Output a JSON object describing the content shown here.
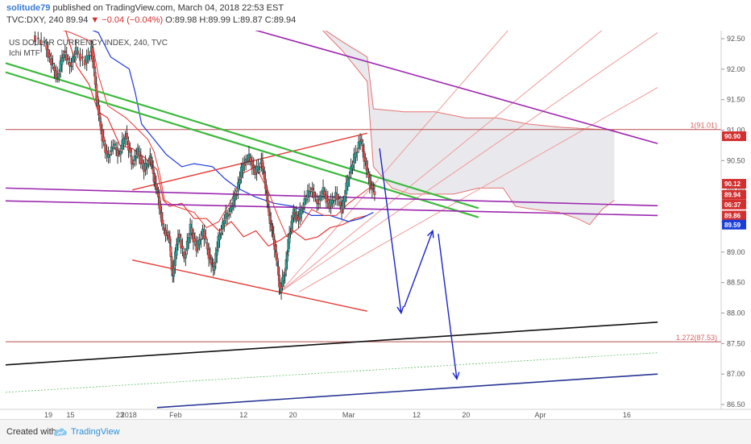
{
  "header": {
    "user": "solitude79",
    "published": "published on TradingView.com, March 04, 2018 22:53 EST",
    "symbol": "TVC:DXY, 240",
    "last": "89.94",
    "change": "▼ −0.04 (−0.04%)",
    "ohlc": "O:89.98 H:89.99 L:89.87 C:89.94"
  },
  "footer": {
    "created_with": "Created with",
    "brand": "TradingView"
  },
  "chart_data": {
    "type": "candlestick",
    "title": "US DOLLAR CURRENCY INDEX, 240, TVC",
    "subtitle": "Ichi MTF",
    "x_ticks": [
      "19",
      "2018",
      "15",
      "23",
      "Feb",
      "12",
      "20",
      "Mar",
      "12",
      "20",
      "Apr",
      "16"
    ],
    "y_ticks": [
      "92.50",
      "92.00",
      "91.50",
      "91.00",
      "90.50",
      "90.00",
      "89.50",
      "89.00",
      "88.50",
      "88.00",
      "87.50",
      "87.00",
      "86.50"
    ],
    "ylim": [
      86.45,
      92.7
    ],
    "price_path": [
      {
        "d": 40,
        "v": 92.55
      },
      {
        "d": 42,
        "v": 92.4
      },
      {
        "d": 43,
        "v": 92.1
      },
      {
        "d": 44,
        "v": 91.85
      },
      {
        "d": 45,
        "v": 92.3
      },
      {
        "d": 46,
        "v": 92.05
      },
      {
        "d": 47,
        "v": 92.3
      },
      {
        "d": 48.5,
        "v": 92.1
      },
      {
        "d": 49.5,
        "v": 92.35
      },
      {
        "d": 50.3,
        "v": 91.55
      },
      {
        "d": 51,
        "v": 91.0
      },
      {
        "d": 52,
        "v": 90.55
      },
      {
        "d": 53,
        "v": 90.75
      },
      {
        "d": 54,
        "v": 90.6
      },
      {
        "d": 55,
        "v": 90.95
      },
      {
        "d": 56,
        "v": 90.45
      },
      {
        "d": 57,
        "v": 90.65
      },
      {
        "d": 58,
        "v": 90.35
      },
      {
        "d": 59,
        "v": 90.55
      },
      {
        "d": 59.6,
        "v": 90.2
      },
      {
        "d": 60.3,
        "v": 89.9
      },
      {
        "d": 61,
        "v": 89.4
      },
      {
        "d": 62,
        "v": 89.25
      },
      {
        "d": 62.6,
        "v": 88.6
      },
      {
        "d": 63.5,
        "v": 89.3
      },
      {
        "d": 64.5,
        "v": 88.9
      },
      {
        "d": 65.5,
        "v": 89.4
      },
      {
        "d": 66.5,
        "v": 89.05
      },
      {
        "d": 67.5,
        "v": 89.35
      },
      {
        "d": 68.5,
        "v": 88.95
      },
      {
        "d": 69.2,
        "v": 88.7
      },
      {
        "d": 70,
        "v": 89.2
      },
      {
        "d": 71,
        "v": 89.55
      },
      {
        "d": 72,
        "v": 89.7
      },
      {
        "d": 73,
        "v": 90.0
      },
      {
        "d": 74,
        "v": 90.45
      },
      {
        "d": 75,
        "v": 90.55
      },
      {
        "d": 76,
        "v": 90.3
      },
      {
        "d": 77,
        "v": 90.5
      },
      {
        "d": 77.6,
        "v": 90.1
      },
      {
        "d": 78.2,
        "v": 89.6
      },
      {
        "d": 78.8,
        "v": 89.3
      },
      {
        "d": 79.4,
        "v": 88.9
      },
      {
        "d": 80,
        "v": 88.35
      },
      {
        "d": 80.8,
        "v": 88.7
      },
      {
        "d": 81.5,
        "v": 89.3
      },
      {
        "d": 82.2,
        "v": 89.65
      },
      {
        "d": 83,
        "v": 89.55
      },
      {
        "d": 84,
        "v": 89.85
      },
      {
        "d": 85,
        "v": 90.05
      },
      {
        "d": 86,
        "v": 89.8
      },
      {
        "d": 87,
        "v": 90.0
      },
      {
        "d": 88,
        "v": 89.75
      },
      {
        "d": 89,
        "v": 89.95
      },
      {
        "d": 90,
        "v": 89.7
      },
      {
        "d": 91,
        "v": 90.2
      },
      {
        "d": 92,
        "v": 90.55
      },
      {
        "d": 93,
        "v": 90.85
      },
      {
        "d": 93.8,
        "v": 90.45
      },
      {
        "d": 94.5,
        "v": 90.15
      },
      {
        "d": 95.3,
        "v": 89.94
      }
    ],
    "channel_lines": [
      {
        "name": "bull-red-upper",
        "color": "#e53935",
        "width": 1.4,
        "d1": 56,
        "v1": 90.02,
        "d2": 94,
        "v2": 90.95
      },
      {
        "name": "bull-red-lower",
        "color": "#e53935",
        "width": 1.4,
        "d1": 56,
        "v1": 88.87,
        "d2": 94,
        "v2": 88.03
      },
      {
        "name": "green-1",
        "color": "#3cb83c",
        "width": 2.2,
        "d1": 35.5,
        "v1": 92.1,
        "d2": 112,
        "v2": 89.72
      },
      {
        "name": "green-2",
        "color": "#3cb83c",
        "width": 2.2,
        "d1": 35.5,
        "v1": 91.95,
        "d2": 112,
        "v2": 89.57
      },
      {
        "name": "purple-top",
        "color": "#9c27b0",
        "width": 1.6,
        "d1": 74.5,
        "v1": 92.68,
        "d2": 141,
        "v2": 90.78
      },
      {
        "name": "purple-mid-1",
        "color": "#9c27b0",
        "width": 1.6,
        "d1": 35.5,
        "v1": 90.05,
        "d2": 141,
        "v2": 89.76
      },
      {
        "name": "purple-mid-2",
        "color": "#9c27b0",
        "width": 1.6,
        "d1": 35.5,
        "v1": 89.84,
        "d2": 141,
        "v2": 89.6
      },
      {
        "name": "black-line",
        "color": "#111111",
        "width": 1.6,
        "d1": 35.5,
        "v1": 87.15,
        "d2": 141,
        "v2": 87.85
      },
      {
        "name": "navy-line",
        "color": "#283593",
        "width": 1.6,
        "d1": 60,
        "v1": 86.45,
        "d2": 141,
        "v2": 87.0
      },
      {
        "name": "green-dotted",
        "color": "#66bb6a",
        "width": 0.8,
        "dash": "2,2",
        "d1": 35.5,
        "v1": 86.7,
        "d2": 141,
        "v2": 87.35
      }
    ],
    "horizontal_levels": [
      {
        "name": "fib-1",
        "value": 91.01,
        "label": "1(91.01)",
        "color": "#b84a4a"
      },
      {
        "name": "fib-1272",
        "value": 87.53,
        "label": "1.272(87.53)",
        "color": "#b84a4a"
      }
    ],
    "fan_lines": [
      {
        "d1": 80,
        "v1": 88.35,
        "d2": 117.5,
        "v2": 92.72
      },
      {
        "d1": 80,
        "v1": 88.35,
        "d2": 133,
        "v2": 92.72
      },
      {
        "d1": 80,
        "v1": 88.35,
        "d2": 141,
        "v2": 92.6
      },
      {
        "d1": 83,
        "v1": 88.35,
        "d2": 141,
        "v2": 91.7
      }
    ],
    "projection_arrows": [
      {
        "d1": 96,
        "v1": 90.7,
        "d2": 99.5,
        "v2": 88.0
      },
      {
        "d1": 100,
        "v1": 88.1,
        "d2": 104.6,
        "v2": 89.35
      },
      {
        "d1": 105.5,
        "v1": 89.3,
        "d2": 108.5,
        "v2": 86.92
      }
    ],
    "ichimoku": {
      "tenkan": [
        {
          "d": 42,
          "v": 92.72
        },
        {
          "d": 46,
          "v": 92.6
        },
        {
          "d": 49.5,
          "v": 92.45
        },
        {
          "d": 50.5,
          "v": 91.9
        },
        {
          "d": 52,
          "v": 91.4
        },
        {
          "d": 55,
          "v": 91.2
        },
        {
          "d": 57,
          "v": 91.0
        },
        {
          "d": 58.5,
          "v": 90.85
        },
        {
          "d": 59.5,
          "v": 90.65
        },
        {
          "d": 60.5,
          "v": 90.25
        },
        {
          "d": 61.2,
          "v": 89.85
        },
        {
          "d": 63,
          "v": 89.75
        },
        {
          "d": 66,
          "v": 89.65
        },
        {
          "d": 68,
          "v": 89.4
        },
        {
          "d": 70,
          "v": 89.5
        },
        {
          "d": 72,
          "v": 89.85
        },
        {
          "d": 74,
          "v": 90.3
        },
        {
          "d": 76,
          "v": 90.4
        },
        {
          "d": 78,
          "v": 90.0
        },
        {
          "d": 79.5,
          "v": 89.6
        },
        {
          "d": 81,
          "v": 89.25
        },
        {
          "d": 83,
          "v": 89.4
        },
        {
          "d": 85,
          "v": 89.7
        },
        {
          "d": 87,
          "v": 89.6
        },
        {
          "d": 89,
          "v": 89.6
        },
        {
          "d": 91,
          "v": 89.8
        },
        {
          "d": 93,
          "v": 89.95
        },
        {
          "d": 95,
          "v": 90.1
        }
      ],
      "kijun": [
        {
          "d": 47.5,
          "v": 92.72
        },
        {
          "d": 50.5,
          "v": 92.6
        },
        {
          "d": 52.5,
          "v": 92.2
        },
        {
          "d": 55.5,
          "v": 92.0
        },
        {
          "d": 56.5,
          "v": 91.6
        },
        {
          "d": 57.5,
          "v": 91.1
        },
        {
          "d": 59.5,
          "v": 90.85
        },
        {
          "d": 61.5,
          "v": 90.6
        },
        {
          "d": 64,
          "v": 90.4
        },
        {
          "d": 66,
          "v": 90.45
        },
        {
          "d": 69,
          "v": 90.4
        },
        {
          "d": 71,
          "v": 90.2
        },
        {
          "d": 73,
          "v": 90.05
        },
        {
          "d": 76,
          "v": 89.9
        },
        {
          "d": 79,
          "v": 89.8
        },
        {
          "d": 82,
          "v": 89.75
        },
        {
          "d": 85,
          "v": 89.6
        },
        {
          "d": 88,
          "v": 89.6
        },
        {
          "d": 91,
          "v": 89.5
        },
        {
          "d": 93,
          "v": 89.55
        },
        {
          "d": 95,
          "v": 89.65
        }
      ],
      "span_red": [
        {
          "d": 45,
          "v": 92.7
        },
        {
          "d": 47,
          "v": 92.05
        },
        {
          "d": 49,
          "v": 91.75
        },
        {
          "d": 50.5,
          "v": 91.3
        },
        {
          "d": 52,
          "v": 91.2
        },
        {
          "d": 54,
          "v": 90.75
        },
        {
          "d": 56,
          "v": 90.7
        },
        {
          "d": 58,
          "v": 90.55
        },
        {
          "d": 60,
          "v": 90.35
        },
        {
          "d": 61,
          "v": 89.85
        },
        {
          "d": 62,
          "v": 89.75
        },
        {
          "d": 64,
          "v": 89.8
        },
        {
          "d": 66,
          "v": 89.55
        },
        {
          "d": 68,
          "v": 89.55
        },
        {
          "d": 70,
          "v": 89.35
        },
        {
          "d": 72,
          "v": 89.5
        },
        {
          "d": 74,
          "v": 89.25
        },
        {
          "d": 76,
          "v": 89.35
        },
        {
          "d": 78,
          "v": 89.1
        },
        {
          "d": 80,
          "v": 89.2
        },
        {
          "d": 82,
          "v": 89.35
        },
        {
          "d": 84,
          "v": 89.2
        },
        {
          "d": 86,
          "v": 89.25
        },
        {
          "d": 88,
          "v": 89.4
        },
        {
          "d": 90,
          "v": 89.45
        },
        {
          "d": 92,
          "v": 89.55
        },
        {
          "d": 94,
          "v": 89.6
        }
      ],
      "cloud_upper": [
        {
          "d": 86,
          "v": 92.72
        },
        {
          "d": 90,
          "v": 92.45
        },
        {
          "d": 94,
          "v": 92.2
        },
        {
          "d": 95,
          "v": 91.35
        },
        {
          "d": 100,
          "v": 91.3
        },
        {
          "d": 105,
          "v": 91.3
        },
        {
          "d": 110,
          "v": 91.2
        },
        {
          "d": 115,
          "v": 91.2
        },
        {
          "d": 120,
          "v": 91.1
        },
        {
          "d": 125,
          "v": 91.05
        },
        {
          "d": 130,
          "v": 91.02
        },
        {
          "d": 134,
          "v": 91.0
        }
      ],
      "cloud_lower": [
        {
          "d": 86,
          "v": 92.72
        },
        {
          "d": 90,
          "v": 92.3
        },
        {
          "d": 94,
          "v": 91.8
        },
        {
          "d": 95,
          "v": 90.4
        },
        {
          "d": 98,
          "v": 90.05
        },
        {
          "d": 101,
          "v": 89.95
        },
        {
          "d": 104,
          "v": 89.95
        },
        {
          "d": 108,
          "v": 89.95
        },
        {
          "d": 112,
          "v": 90.05
        },
        {
          "d": 116,
          "v": 90.05
        },
        {
          "d": 118,
          "v": 89.75
        },
        {
          "d": 121,
          "v": 89.7
        },
        {
          "d": 125,
          "v": 89.65
        },
        {
          "d": 128,
          "v": 89.55
        },
        {
          "d": 130,
          "v": 89.45
        },
        {
          "d": 132,
          "v": 89.7
        },
        {
          "d": 134,
          "v": 89.85
        }
      ]
    },
    "price_badges": [
      {
        "label": "90.90",
        "value": 90.9,
        "color": "#d32f2f"
      },
      {
        "label": "90.12",
        "value": 90.12,
        "color": "#d32f2f"
      },
      {
        "label": "89.94",
        "value": 89.94,
        "color": "#d32f2f"
      },
      {
        "label": "06:37",
        "value": 89.78,
        "color": "#d32f2f"
      },
      {
        "label": "89.86",
        "value": 89.6,
        "color": "#d32f2f"
      },
      {
        "label": "89.59",
        "value": 89.45,
        "color": "#1a3fd8"
      }
    ],
    "legend": "none",
    "grid": false
  }
}
